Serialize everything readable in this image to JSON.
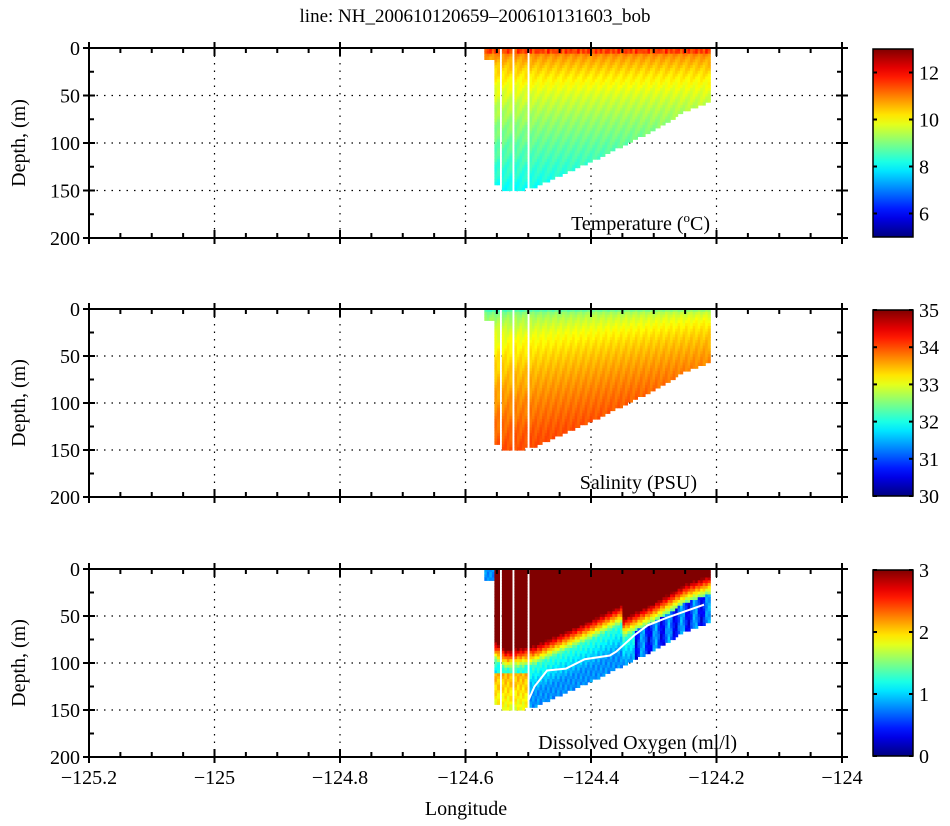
{
  "figure": {
    "title": "line: NH_200610120659–200610131603_bob",
    "xlabel": "Longitude"
  },
  "chart_data": [
    {
      "type": "heatmap",
      "title": "line: NH_200610120659–200610131603_bob",
      "panel_label": "Temperature (°C)",
      "panel_label_parts": [
        "Temperature (",
        "o",
        "C)"
      ],
      "xlabel": "",
      "ylabel": "Depth, (m)",
      "xlim": [
        -125.2,
        -124
      ],
      "ylim": [
        0,
        200
      ],
      "y_reversed": true,
      "x_ticks": [
        -125.2,
        -125,
        -124.8,
        -124.6,
        -124.4,
        -124.2,
        -124
      ],
      "y_ticks": [
        0,
        50,
        100,
        150,
        200
      ],
      "y_tick_labels": [
        "0",
        "50",
        "100",
        "150",
        "200"
      ],
      "grid": true,
      "colormap": "jet",
      "clim": [
        5,
        13
      ],
      "colorbar_ticks": [
        6,
        8,
        10,
        12
      ],
      "colorbar_tick_labels": [
        "6",
        "8",
        "10",
        "12"
      ],
      "section": {
        "lon_start": -124.57,
        "lon_end": -124.21,
        "casts": [
          {
            "lon": -124.555,
            "max_depth": 140
          },
          {
            "lon": -124.535,
            "max_depth": 150
          },
          {
            "lon": -124.515,
            "max_depth": 148
          },
          {
            "lon": -124.49,
            "max_depth": 145
          },
          {
            "lon": -124.4,
            "max_depth": 118
          },
          {
            "lon": -124.3,
            "max_depth": 85
          },
          {
            "lon": -124.25,
            "max_depth": 65
          },
          {
            "lon": -124.21,
            "max_depth": 55
          }
        ],
        "surface_value": 11.5,
        "mid_value": 9,
        "deep_value": 7.8
      }
    },
    {
      "type": "heatmap",
      "panel_label": "Salinity (PSU)",
      "xlabel": "",
      "ylabel": "Depth, (m)",
      "xlim": [
        -125.2,
        -124
      ],
      "ylim": [
        0,
        200
      ],
      "y_reversed": true,
      "x_ticks": [
        -125.2,
        -125,
        -124.8,
        -124.6,
        -124.4,
        -124.2,
        -124
      ],
      "y_ticks": [
        0,
        50,
        100,
        150,
        200
      ],
      "y_tick_labels": [
        "0",
        "50",
        "100",
        "150",
        "200"
      ],
      "grid": true,
      "colormap": "jet",
      "clim": [
        30,
        35
      ],
      "colorbar_ticks": [
        30,
        31,
        32,
        33,
        34,
        35
      ],
      "colorbar_tick_labels": [
        "30",
        "31",
        "32",
        "33",
        "34",
        "35"
      ],
      "section": {
        "surface_value": 32.4,
        "mid_value": 33.4,
        "deep_value": 33.9
      }
    },
    {
      "type": "heatmap",
      "panel_label": "Dissolved Oxygen (ml/l)",
      "xlabel": "Longitude",
      "ylabel": "Depth, (m)",
      "xlim": [
        -125.2,
        -124
      ],
      "ylim": [
        0,
        200
      ],
      "y_reversed": true,
      "x_ticks": [
        -125.2,
        -125,
        -124.8,
        -124.6,
        -124.4,
        -124.2,
        -124
      ],
      "x_tick_labels": [
        "−125.2",
        "−125",
        "−124.8",
        "−124.6",
        "−124.4",
        "−124.2",
        "−124"
      ],
      "y_ticks": [
        0,
        50,
        100,
        150,
        200
      ],
      "y_tick_labels": [
        "0",
        "50",
        "100",
        "150",
        "200"
      ],
      "grid": true,
      "colormap": "jet",
      "clim": [
        0,
        3
      ],
      "colorbar_ticks": [
        0,
        1,
        2,
        3
      ],
      "colorbar_tick_labels": [
        "0",
        "1",
        "2",
        "3"
      ],
      "section": {
        "surface_value": 3,
        "deep_value": 1.1,
        "contour_line_color": "#ffffff"
      }
    }
  ]
}
